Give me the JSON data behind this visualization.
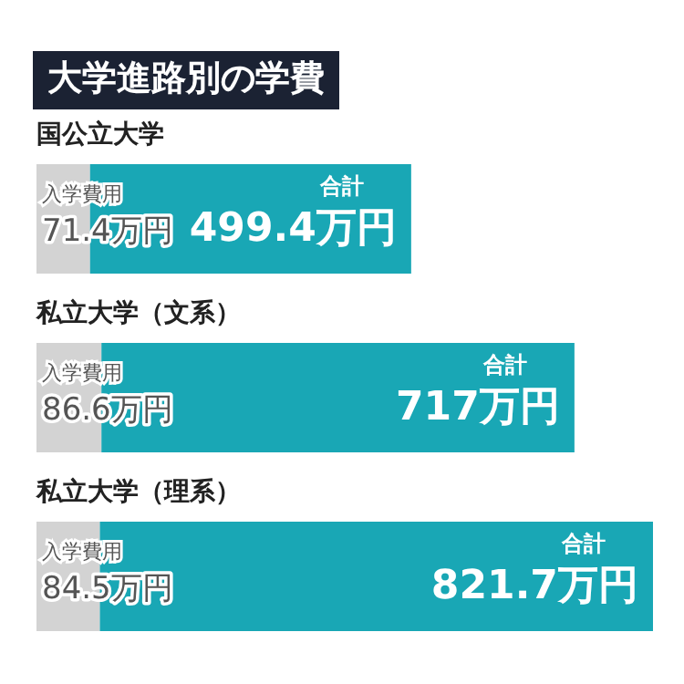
{
  "chart_data": {
    "type": "bar",
    "orientation": "horizontal",
    "stacked": true,
    "title": "大学進路別の学費",
    "categories": [
      "国公立大学",
      "私立大学（文系）",
      "私立大学（理系）"
    ],
    "series": [
      {
        "name": "入学費用",
        "color": "#d3d3d3",
        "values": [
          71.4,
          86.6,
          84.5
        ],
        "value_labels": [
          "71.4万円",
          "86.6万円",
          "84.5万円"
        ]
      },
      {
        "color": "#19a7b5",
        "values": [
          428.0,
          630.4,
          737.2
        ]
      }
    ],
    "totals": [
      "499.4万円",
      "717万円",
      "821.7万円"
    ],
    "annotations": [
      {
        "text": "合計",
        "x": 499.4,
        "y": "国公立大学"
      },
      {
        "text": "合計",
        "x": 717,
        "y": "私立大学（文系）"
      },
      {
        "text": "合計",
        "x": 821.7,
        "y": "私立大学（理系）"
      }
    ],
    "legend": false
  }
}
